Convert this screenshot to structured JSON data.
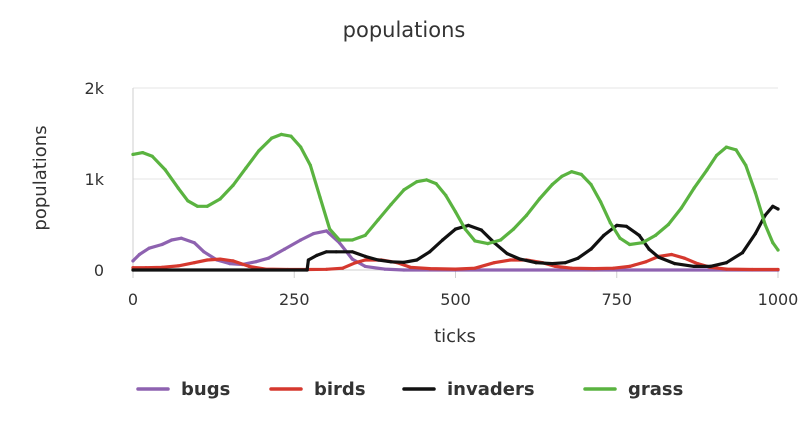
{
  "chart_data": {
    "type": "line",
    "title": "populations",
    "xlabel": "ticks",
    "ylabel": "populations",
    "xlim": [
      0,
      1000
    ],
    "ylim": [
      0,
      2000
    ],
    "x_ticks": [
      0,
      250,
      500,
      750,
      1000
    ],
    "x_tick_labels": [
      "0",
      "250",
      "500",
      "750",
      "1000"
    ],
    "y_ticks": [
      0,
      1000,
      2000
    ],
    "y_tick_labels": [
      "0",
      "1k",
      "2k"
    ],
    "grid": "horizontal",
    "legend_position": "bottom",
    "series": [
      {
        "name": "bugs",
        "color": "#8e62b0",
        "points": [
          [
            0,
            100
          ],
          [
            10,
            170
          ],
          [
            25,
            240
          ],
          [
            45,
            280
          ],
          [
            60,
            330
          ],
          [
            75,
            350
          ],
          [
            95,
            300
          ],
          [
            110,
            200
          ],
          [
            130,
            110
          ],
          [
            150,
            70
          ],
          [
            170,
            60
          ],
          [
            190,
            90
          ],
          [
            210,
            130
          ],
          [
            235,
            230
          ],
          [
            260,
            330
          ],
          [
            280,
            400
          ],
          [
            300,
            430
          ],
          [
            320,
            300
          ],
          [
            340,
            120
          ],
          [
            360,
            40
          ],
          [
            390,
            10
          ],
          [
            420,
            0
          ],
          [
            1000,
            0
          ]
        ]
      },
      {
        "name": "birds",
        "color": "#d5382e",
        "points": [
          [
            0,
            25
          ],
          [
            20,
            25
          ],
          [
            45,
            30
          ],
          [
            70,
            45
          ],
          [
            95,
            80
          ],
          [
            115,
            110
          ],
          [
            135,
            120
          ],
          [
            155,
            100
          ],
          [
            180,
            40
          ],
          [
            205,
            10
          ],
          [
            240,
            5
          ],
          [
            270,
            5
          ],
          [
            300,
            8
          ],
          [
            325,
            20
          ],
          [
            345,
            80
          ],
          [
            360,
            110
          ],
          [
            385,
            110
          ],
          [
            410,
            80
          ],
          [
            430,
            30
          ],
          [
            460,
            15
          ],
          [
            500,
            10
          ],
          [
            530,
            20
          ],
          [
            560,
            80
          ],
          [
            585,
            110
          ],
          [
            610,
            110
          ],
          [
            635,
            80
          ],
          [
            655,
            40
          ],
          [
            680,
            20
          ],
          [
            715,
            15
          ],
          [
            745,
            20
          ],
          [
            770,
            40
          ],
          [
            795,
            90
          ],
          [
            815,
            150
          ],
          [
            835,
            170
          ],
          [
            855,
            130
          ],
          [
            875,
            70
          ],
          [
            895,
            30
          ],
          [
            920,
            10
          ],
          [
            960,
            5
          ],
          [
            1000,
            5
          ]
        ]
      },
      {
        "name": "invaders",
        "color": "#111111",
        "points": [
          [
            0,
            0
          ],
          [
            270,
            0
          ],
          [
            272,
            110
          ],
          [
            285,
            160
          ],
          [
            300,
            200
          ],
          [
            315,
            200
          ],
          [
            340,
            200
          ],
          [
            360,
            150
          ],
          [
            380,
            110
          ],
          [
            400,
            90
          ],
          [
            420,
            85
          ],
          [
            440,
            110
          ],
          [
            460,
            200
          ],
          [
            480,
            330
          ],
          [
            500,
            450
          ],
          [
            520,
            490
          ],
          [
            540,
            440
          ],
          [
            560,
            300
          ],
          [
            580,
            180
          ],
          [
            600,
            120
          ],
          [
            625,
            80
          ],
          [
            650,
            70
          ],
          [
            670,
            80
          ],
          [
            690,
            130
          ],
          [
            710,
            230
          ],
          [
            730,
            380
          ],
          [
            750,
            490
          ],
          [
            765,
            480
          ],
          [
            785,
            380
          ],
          [
            800,
            230
          ],
          [
            815,
            140
          ],
          [
            840,
            70
          ],
          [
            870,
            40
          ],
          [
            895,
            40
          ],
          [
            920,
            80
          ],
          [
            945,
            190
          ],
          [
            965,
            400
          ],
          [
            980,
            600
          ],
          [
            992,
            700
          ],
          [
            1000,
            670
          ]
        ]
      },
      {
        "name": "grass",
        "color": "#5ab340",
        "points": [
          [
            0,
            1270
          ],
          [
            15,
            1290
          ],
          [
            30,
            1250
          ],
          [
            50,
            1100
          ],
          [
            70,
            900
          ],
          [
            85,
            760
          ],
          [
            100,
            700
          ],
          [
            115,
            700
          ],
          [
            135,
            780
          ],
          [
            155,
            930
          ],
          [
            175,
            1120
          ],
          [
            195,
            1310
          ],
          [
            215,
            1450
          ],
          [
            230,
            1490
          ],
          [
            245,
            1470
          ],
          [
            260,
            1350
          ],
          [
            275,
            1150
          ],
          [
            290,
            800
          ],
          [
            305,
            450
          ],
          [
            320,
            330
          ],
          [
            340,
            330
          ],
          [
            360,
            380
          ],
          [
            380,
            550
          ],
          [
            400,
            720
          ],
          [
            420,
            880
          ],
          [
            440,
            970
          ],
          [
            455,
            990
          ],
          [
            470,
            950
          ],
          [
            485,
            820
          ],
          [
            500,
            640
          ],
          [
            515,
            450
          ],
          [
            530,
            320
          ],
          [
            550,
            290
          ],
          [
            570,
            330
          ],
          [
            590,
            450
          ],
          [
            610,
            600
          ],
          [
            630,
            780
          ],
          [
            650,
            940
          ],
          [
            665,
            1030
          ],
          [
            680,
            1080
          ],
          [
            695,
            1050
          ],
          [
            710,
            940
          ],
          [
            725,
            750
          ],
          [
            740,
            520
          ],
          [
            755,
            350
          ],
          [
            770,
            280
          ],
          [
            790,
            300
          ],
          [
            810,
            380
          ],
          [
            830,
            500
          ],
          [
            850,
            680
          ],
          [
            870,
            900
          ],
          [
            890,
            1100
          ],
          [
            905,
            1260
          ],
          [
            920,
            1350
          ],
          [
            935,
            1320
          ],
          [
            950,
            1150
          ],
          [
            965,
            850
          ],
          [
            980,
            500
          ],
          [
            992,
            300
          ],
          [
            1000,
            220
          ]
        ]
      }
    ]
  }
}
